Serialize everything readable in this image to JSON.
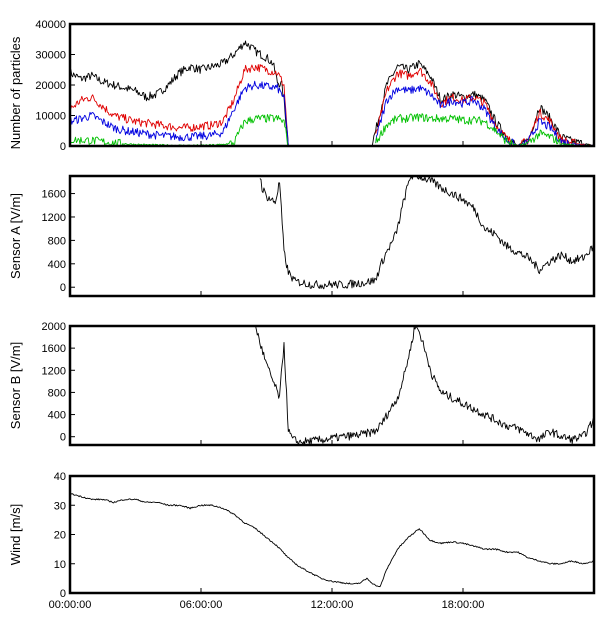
{
  "chart_data": [
    {
      "type": "line",
      "ylabel": "Number of particles",
      "ylim": [
        0,
        40000
      ],
      "yticks": [
        "0",
        "10000",
        "20000",
        "30000",
        "40000"
      ],
      "xlim_hours": [
        0,
        24
      ],
      "series": [
        {
          "color": "#000000",
          "segments": [
            {
              "x": [
                0,
                0.5,
                1,
                1.5,
                2,
                2.5,
                3,
                3.5,
                4,
                4.5,
                5,
                5.5,
                6,
                6.5,
                7,
                7.5,
                8,
                8.2,
                8.5,
                9,
                9.3,
                9.5,
                9.7,
                9.8,
                10
              ],
              "y": [
                24000,
                22000,
                23000,
                21000,
                20000,
                19000,
                18000,
                16000,
                17000,
                20000,
                24000,
                26000,
                25000,
                26000,
                27000,
                30000,
                34000,
                33000,
                31000,
                29000,
                27000,
                21000,
                20000,
                15000,
                0
              ]
            },
            {
              "x": [
                13.8,
                14,
                14.5,
                15,
                15.5,
                16,
                16.5,
                17,
                17.5,
                18,
                18.5,
                19,
                19.5,
                20,
                20.5,
                21,
                21.5,
                22,
                22.5,
                23,
                23.5,
                24
              ],
              "y": [
                0,
                5000,
                20000,
                26000,
                25000,
                27000,
                23000,
                15000,
                17000,
                16000,
                17000,
                15000,
                8000,
                3000,
                0,
                2000,
                13000,
                9000,
                3000,
                1500,
                800,
                0
              ]
            }
          ]
        },
        {
          "color": "#e00000",
          "segments": [
            {
              "x": [
                0,
                0.5,
                1,
                1.5,
                2,
                2.5,
                3,
                3.5,
                4,
                4.5,
                5,
                5.5,
                6,
                6.5,
                7,
                7.5,
                8,
                8.5,
                9,
                9.5,
                9.8,
                10
              ],
              "y": [
                12000,
                15000,
                16000,
                13000,
                10000,
                9000,
                8000,
                7500,
                7000,
                6500,
                6000,
                6000,
                6500,
                6800,
                8000,
                15000,
                25000,
                26000,
                25000,
                24000,
                20000,
                0
              ]
            },
            {
              "x": [
                14,
                14.5,
                15,
                15.5,
                16,
                16.5,
                17,
                17.5,
                18,
                18.5,
                19,
                19.5,
                20,
                20.5,
                21,
                21.5,
                22,
                22.5,
                23,
                24
              ],
              "y": [
                3000,
                18000,
                24000,
                23000,
                25000,
                21000,
                14000,
                16000,
                15000,
                16000,
                14000,
                7000,
                2500,
                0,
                2000,
                11000,
                8000,
                2000,
                1000,
                0
              ]
            }
          ]
        },
        {
          "color": "#0000e0",
          "segments": [
            {
              "x": [
                0,
                0.5,
                1,
                1.5,
                2,
                2.5,
                3,
                3.5,
                4,
                4.5,
                5,
                5.5,
                6,
                6.5,
                7,
                7.5,
                8,
                8.5,
                9,
                9.5,
                9.8,
                10
              ],
              "y": [
                8000,
                9000,
                10000,
                8000,
                6000,
                5000,
                4500,
                4000,
                3500,
                3200,
                3000,
                3000,
                3200,
                3500,
                4500,
                12000,
                19000,
                20000,
                19500,
                19000,
                16000,
                0
              ]
            },
            {
              "x": [
                14,
                14.5,
                15,
                15.5,
                16,
                16.5,
                17,
                17.5,
                18,
                18.5,
                19,
                19.5,
                20,
                20.5,
                21,
                21.5,
                22,
                22.5,
                23,
                24
              ],
              "y": [
                2000,
                15000,
                19000,
                18000,
                19000,
                17000,
                13000,
                15000,
                14000,
                15000,
                12000,
                6000,
                2000,
                0,
                1500,
                8000,
                6000,
                1500,
                700,
                0
              ]
            }
          ]
        },
        {
          "color": "#00c000",
          "segments": [
            {
              "x": [
                0,
                1,
                2,
                3,
                4,
                5,
                6,
                6.5,
                7,
                7.5,
                8,
                8.5,
                9,
                9.5,
                9.8,
                10
              ],
              "y": [
                2000,
                1800,
                1000,
                500,
                300,
                200,
                200,
                300,
                500,
                1000,
                8000,
                9000,
                9000,
                9000,
                8000,
                0
              ]
            },
            {
              "x": [
                14,
                14.5,
                15,
                15.5,
                16,
                16.5,
                17,
                17.5,
                18,
                18.5,
                19,
                19.5,
                20,
                20.5,
                21,
                21.5,
                22,
                22.5,
                23,
                24
              ],
              "y": [
                1000,
                7000,
                9000,
                9000,
                9500,
                9000,
                9000,
                9000,
                8500,
                8500,
                8000,
                5000,
                1500,
                0,
                1000,
                4000,
                3000,
                800,
                300,
                0
              ]
            }
          ]
        }
      ]
    },
    {
      "type": "line",
      "ylabel": "Sensor A [V/m]",
      "ylim": [
        -150,
        1900
      ],
      "yticks": [
        "0",
        "400",
        "800",
        "1200",
        "1600"
      ],
      "xlim_hours": [
        0,
        24
      ],
      "series": [
        {
          "color": "#000000",
          "segments": [
            {
              "x": [
                8.7,
                8.8,
                9,
                9.2,
                9.4,
                9.6,
                9.8,
                10,
                10.3,
                10.6,
                11,
                11.5,
                12,
                12.5,
                13,
                13.5,
                14,
                14.2,
                14.5,
                14.8,
                15,
                15.3,
                15.6,
                16,
                16.3,
                16.6,
                17,
                17.5,
                18,
                18.5,
                19,
                19.5,
                20,
                20.5,
                21,
                21.5,
                22,
                22.5,
                23,
                23.5,
                24
              ],
              "y": [
                1900,
                1700,
                1550,
                1500,
                1450,
                1800,
                600,
                250,
                100,
                80,
                50,
                40,
                50,
                40,
                60,
                80,
                120,
                350,
                600,
                800,
                1000,
                1500,
                1900,
                1900,
                1850,
                1800,
                1700,
                1600,
                1500,
                1350,
                1000,
                900,
                700,
                600,
                500,
                300,
                450,
                550,
                450,
                500,
                700
              ]
            }
          ]
        }
      ]
    },
    {
      "type": "line",
      "ylabel": "Sensor B [V/m]",
      "ylim": [
        -150,
        2000
      ],
      "yticks": [
        "0",
        "400",
        "800",
        "1200",
        "1600",
        "2000"
      ],
      "xlim_hours": [
        0,
        24
      ],
      "series": [
        {
          "color": "#000000",
          "segments": [
            {
              "x": [
                8.5,
                8.7,
                9,
                9.3,
                9.6,
                9.8,
                10,
                10.2,
                10.5,
                11,
                11.5,
                12,
                12.5,
                13,
                13.5,
                14,
                14.3,
                14.6,
                15,
                15.3,
                15.6,
                15.8,
                16,
                16.3,
                16.6,
                17,
                17.5,
                18,
                18.5,
                19,
                19.5,
                20,
                20.5,
                21,
                21.5,
                22,
                22.5,
                23,
                23.5,
                24
              ],
              "y": [
                2000,
                1700,
                1300,
                1000,
                700,
                1700,
                100,
                -50,
                -100,
                -80,
                -60,
                -30,
                0,
                20,
                50,
                100,
                250,
                450,
                700,
                1100,
                1600,
                2000,
                1900,
                1500,
                1100,
                800,
                700,
                600,
                500,
                400,
                300,
                200,
                150,
                50,
                -50,
                100,
                0,
                -50,
                0,
                300
              ]
            }
          ]
        }
      ]
    },
    {
      "type": "line",
      "ylabel": "Wind [m/s]",
      "ylim": [
        0,
        40
      ],
      "yticks": [
        "0",
        "10",
        "20",
        "30",
        "40"
      ],
      "xticks": [
        "00:00:00",
        "06:00:00",
        "12:00:00",
        "18:00:00"
      ],
      "xlim_hours": [
        0,
        24
      ],
      "series": [
        {
          "color": "#000000",
          "segments": [
            {
              "x": [
                0,
                0.5,
                1,
                1.5,
                2,
                2.5,
                3,
                3.5,
                4,
                4.5,
                5,
                5.5,
                6,
                6.5,
                7,
                7.5,
                8,
                8.5,
                9,
                9.5,
                10,
                10.5,
                11,
                11.5,
                12,
                12.5,
                13,
                13.3,
                13.6,
                13.9,
                14.2,
                14.5,
                15,
                15.5,
                16,
                16.5,
                17,
                17.5,
                18,
                18.5,
                19,
                19.5,
                20,
                20.5,
                21,
                21.5,
                22,
                22.5,
                23,
                23.5,
                24
              ],
              "y": [
                34,
                33,
                32,
                32,
                31,
                32,
                32,
                31,
                31,
                30,
                30,
                29,
                30,
                30,
                29,
                27,
                24,
                22,
                19,
                16,
                12,
                9,
                7,
                5,
                4,
                3.5,
                3,
                3.5,
                5,
                3,
                2,
                8,
                15,
                19,
                22,
                18,
                17,
                17.5,
                17,
                16,
                15,
                15,
                14,
                14,
                12,
                11,
                10,
                10,
                11,
                10,
                11
              ]
            }
          ]
        }
      ]
    }
  ]
}
